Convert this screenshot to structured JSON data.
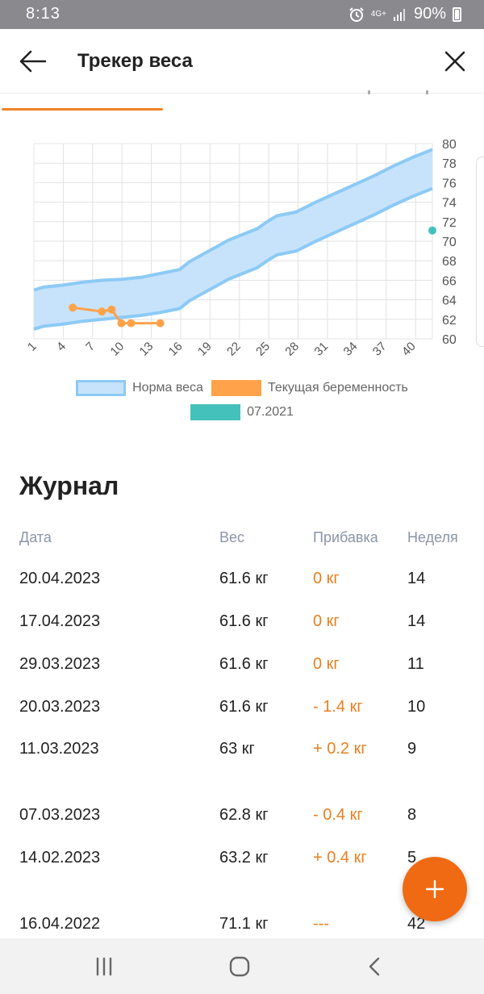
{
  "status_bar": {
    "time": "8:13",
    "network": "4G+",
    "battery": "90%",
    "icons": [
      "alarm-icon",
      "network-icon",
      "signal-icon",
      "battery-icon"
    ]
  },
  "header": {
    "title": "Трекер веса",
    "back_icon": "arrow-left-icon",
    "close_icon": "close-icon"
  },
  "colors": {
    "accent": "#f08326",
    "band_fill": "#c7e3fb",
    "band_stroke": "#8ccaf5",
    "current_series": "#ffa249",
    "old_series": "#45c1bb",
    "fab": "#f06a13",
    "gain_text": "#e97f1e"
  },
  "chart_data": {
    "type": "area",
    "x_ticks": [
      "1",
      "4",
      "7",
      "10",
      "13",
      "16",
      "19",
      "22",
      "25",
      "28",
      "31",
      "34",
      "37",
      "40"
    ],
    "y_ticks": [
      "60",
      "62",
      "64",
      "66",
      "68",
      "70",
      "72",
      "74",
      "76",
      "78",
      "80"
    ],
    "xlim": [
      1,
      42
    ],
    "ylim": [
      60,
      80
    ],
    "grid": true,
    "legend_placement": "bottom",
    "series": [
      {
        "name": "Норма веса",
        "kind": "band",
        "x": [
          1,
          2,
          4,
          6,
          8,
          10,
          12,
          14,
          16,
          17,
          19,
          21,
          23,
          24,
          25,
          26,
          28,
          30,
          32,
          34,
          36,
          38,
          40,
          42
        ],
        "upper": [
          65,
          65.3,
          65.5,
          65.8,
          66,
          66.1,
          66.3,
          66.7,
          67.1,
          67.9,
          69,
          70.1,
          70.9,
          71.3,
          72,
          72.6,
          73,
          74,
          74.9,
          75.8,
          76.7,
          77.7,
          78.6,
          79.4
        ],
        "lower": [
          61,
          61.3,
          61.5,
          61.8,
          62,
          62.2,
          62.4,
          62.7,
          63.1,
          63.9,
          65,
          66.1,
          66.9,
          67.3,
          68,
          68.6,
          69,
          70,
          70.9,
          71.8,
          72.7,
          73.7,
          74.6,
          75.4
        ]
      },
      {
        "name": "Текущая беременность",
        "kind": "line",
        "x": [
          5,
          8,
          9,
          10,
          11,
          14
        ],
        "y": [
          63.2,
          62.8,
          63,
          61.6,
          61.6,
          61.6
        ]
      },
      {
        "name": "07.2021",
        "kind": "scatter",
        "x": [
          42
        ],
        "y": [
          71.1
        ]
      }
    ]
  },
  "legend": {
    "items": [
      "Норма веса",
      "Текущая беременность",
      "07.2021"
    ]
  },
  "journal": {
    "title": "Журнал",
    "columns": [
      "Дата",
      "Вес",
      "Прибавка",
      "Неделя"
    ],
    "rows": [
      {
        "date": "20.04.2023",
        "weight": "61.6 кг",
        "gain": "0 кг",
        "week": "14"
      },
      {
        "date": "17.04.2023",
        "weight": "61.6 кг",
        "gain": "0 кг",
        "week": "14"
      },
      {
        "date": "29.03.2023",
        "weight": "61.6 кг",
        "gain": "0 кг",
        "week": "11"
      },
      {
        "date": "20.03.2023",
        "weight": "61.6 кг",
        "gain": "- 1.4 кг",
        "week": "10"
      },
      {
        "date": "11.03.2023",
        "weight": "63 кг",
        "gain": "+ 0.2 кг",
        "week": "9"
      },
      {
        "date": "07.03.2023",
        "weight": "62.8 кг",
        "gain": "- 0.4 кг",
        "week": "8"
      },
      {
        "date": "14.02.2023",
        "weight": "63.2 кг",
        "gain": "+ 0.4 кг",
        "week": "5"
      },
      {
        "date": "16.04.2022",
        "weight": "71.1 кг",
        "gain": "---",
        "week": "42"
      }
    ]
  },
  "fab": {
    "icon": "plus-icon"
  },
  "nav_bar": {
    "icons": [
      "recent-apps-icon",
      "home-icon",
      "back-nav-icon"
    ]
  }
}
